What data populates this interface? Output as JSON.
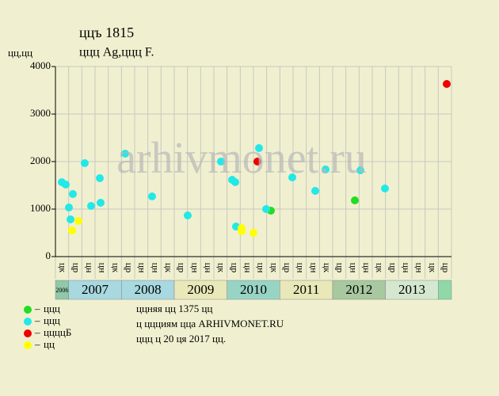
{
  "chart_data": {
    "type": "scatter",
    "title": "ццъ 1815",
    "subtitle": "ццц Ag,ццц F.",
    "y_label": "цц,цц",
    "watermark": "arhivmonet.ru",
    "ylim": [
      0,
      4000
    ],
    "yticks": [
      0,
      1000,
      2000,
      3000,
      4000
    ],
    "xlim": [
      0,
      30
    ],
    "grid": true,
    "quarter_labels": [
      "цк",
      "цр",
      "цн",
      "цн",
      "цк",
      "цр",
      "цн",
      "цн",
      "цк",
      "цр",
      "цн",
      "цн",
      "цк",
      "цр",
      "цн",
      "цн",
      "цк",
      "цр",
      "цн",
      "цн",
      "цк",
      "цр",
      "цн",
      "цн",
      "цк",
      "цр",
      "цн",
      "цн",
      "цк",
      "цр"
    ],
    "years": [
      {
        "label": "2006",
        "quarters": 1,
        "color": "#90c8a8"
      },
      {
        "label": "2007",
        "quarters": 4,
        "color": "#a8d8e0"
      },
      {
        "label": "2008",
        "quarters": 4,
        "color": "#a8d8e0"
      },
      {
        "label": "2009",
        "quarters": 4,
        "color": "#e8e8b8"
      },
      {
        "label": "2010",
        "quarters": 4,
        "color": "#98d4c4"
      },
      {
        "label": "2011",
        "quarters": 4,
        "color": "#e8e8b8"
      },
      {
        "label": "2012",
        "quarters": 4,
        "color": "#a8c8a0"
      },
      {
        "label": "2013",
        "quarters": 4,
        "color": "#d4e8d0"
      },
      {
        "label": null,
        "quarters": 1,
        "color": "#90d8a8"
      }
    ],
    "series": [
      {
        "name": "ццц",
        "color": "#22dd22",
        "x": [
          16.32,
          22.68
        ],
        "values": [
          967,
          1183
        ]
      },
      {
        "name": "ццц",
        "color": "#22e8e8",
        "x": [
          0.48,
          0.78,
          1.02,
          1.14,
          1.32,
          2.22,
          2.7,
          3.36,
          3.42,
          5.28,
          7.32,
          10.02,
          12.54,
          13.38,
          13.62,
          13.68,
          15.42,
          15.96,
          17.94,
          19.68,
          20.46,
          23.1,
          24.96
        ],
        "values": [
          1567,
          1517,
          1033,
          783,
          1317,
          1967,
          1067,
          1650,
          1133,
          2167,
          1267,
          867,
          2000,
          1617,
          1567,
          633,
          2283,
          1000,
          1667,
          1383,
          1833,
          1817,
          1433
        ]
      },
      {
        "name": "ццццБ",
        "color": "#ee0000",
        "x": [
          15.3,
          29.64
        ],
        "values": [
          2000,
          3633
        ]
      },
      {
        "name": "цц",
        "color": "#ffff00",
        "x": [
          1.26,
          1.74,
          14.1,
          14.1,
          15
        ],
        "values": [
          550,
          750,
          600,
          533,
          500
        ]
      }
    ],
    "notes": [
      "ццняя цц 1375 цц",
      "ц ццциям цца ARHIVMONET.RU",
      "ццц ц 20 ця 2017 цц."
    ]
  }
}
